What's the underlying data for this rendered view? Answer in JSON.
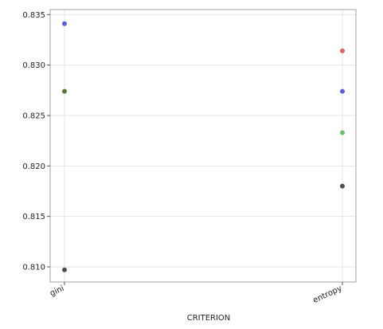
{
  "chart_data": {
    "type": "scatter",
    "title": "",
    "xlabel": "CRITERION",
    "ylabel": "",
    "categories": [
      "gini",
      "entropy"
    ],
    "ylim": [
      0.8085,
      0.8355
    ],
    "yticks": [
      "0.810",
      "0.815",
      "0.820",
      "0.825",
      "0.830",
      "0.835"
    ],
    "grid": true,
    "points": [
      {
        "x": "gini",
        "y": 0.8341,
        "color": "#4b4bdc"
      },
      {
        "x": "gini",
        "y": 0.8274,
        "color": "#4b6b24"
      },
      {
        "x": "gini",
        "y": 0.8097,
        "color": "#3c3c3c"
      },
      {
        "x": "entropy",
        "y": 0.8314,
        "color": "#d9534f"
      },
      {
        "x": "entropy",
        "y": 0.8274,
        "color": "#4b4bdc"
      },
      {
        "x": "entropy",
        "y": 0.8233,
        "color": "#5cb85c"
      },
      {
        "x": "entropy",
        "y": 0.818,
        "color": "#3c3c3c"
      }
    ]
  },
  "colors": {
    "frame": "#b0b0b0",
    "grid": "#e4e4e4"
  }
}
